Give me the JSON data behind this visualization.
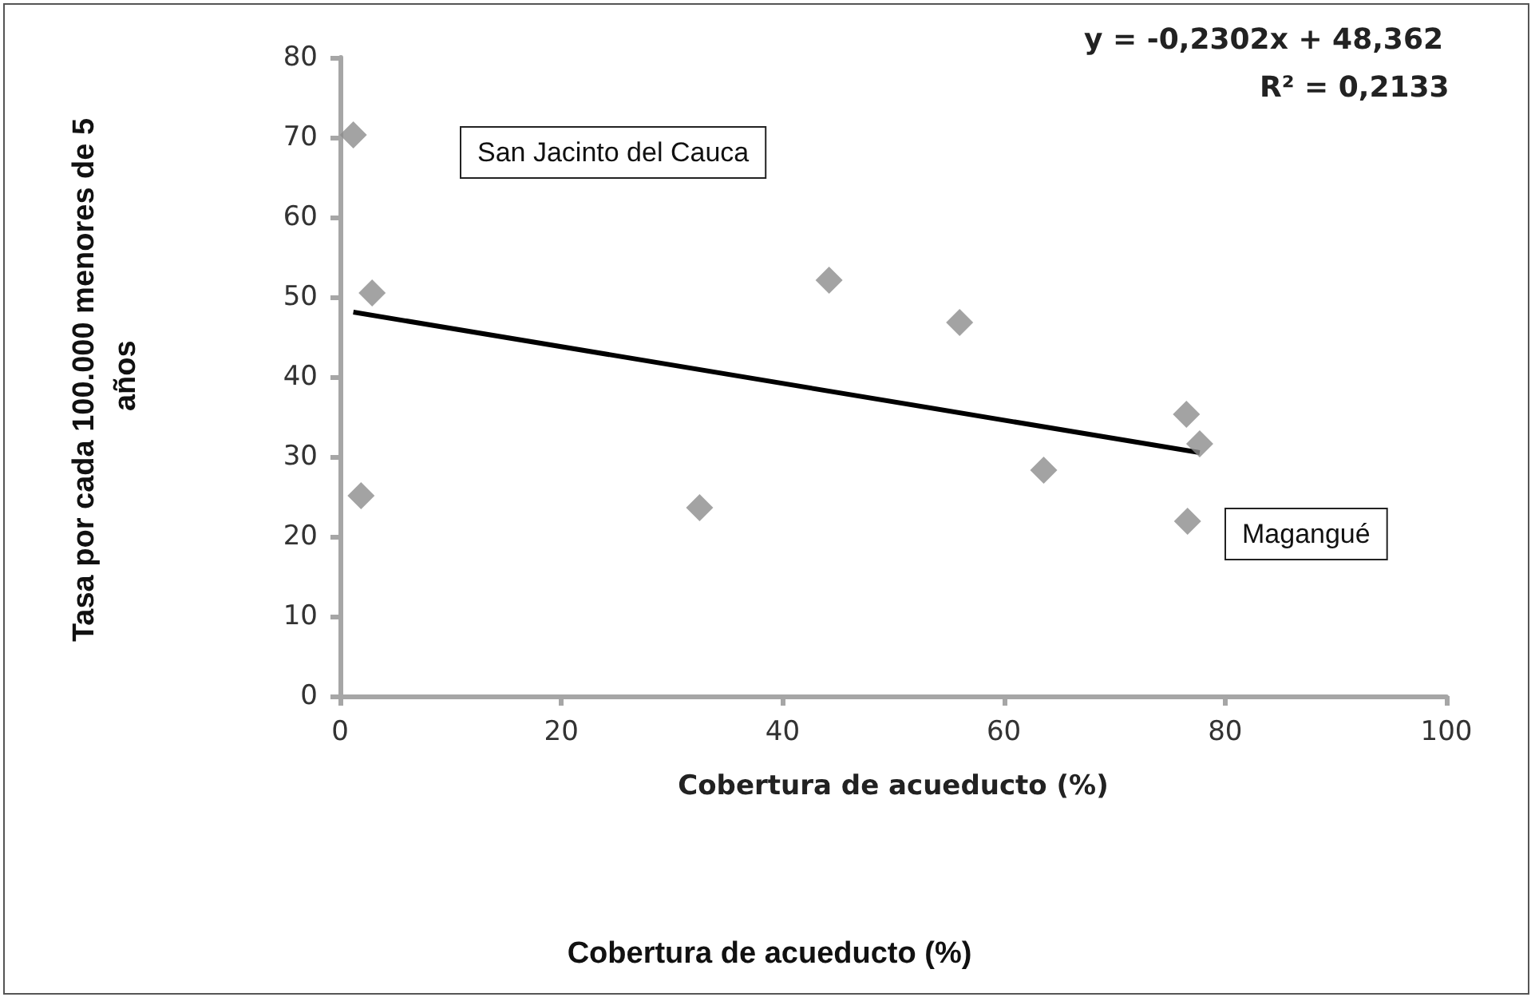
{
  "chart_data": {
    "type": "scatter",
    "xlabel": "Cobertura de acueducto (%)",
    "ylabel": "Tasa por cada 100.000 menores de 5 años",
    "x": [
      1.2,
      2.9,
      1.9,
      32.5,
      44.2,
      56.0,
      63.6,
      76.5,
      77.7,
      76.6
    ],
    "series": [
      {
        "type": "scatter",
        "color": "#8c8c8c",
        "values": [
          70.3,
          50.5,
          25.1,
          23.6,
          52.1,
          46.8,
          28.3,
          35.3,
          31.6,
          21.9
        ]
      },
      {
        "type": "line",
        "color": "#000000",
        "x": [
          1.2,
          77.7
        ],
        "values": [
          48.1,
          30.5
        ],
        "marker": "none"
      }
    ],
    "marker": "diamond",
    "xlim": [
      0,
      100
    ],
    "xticks": [
      0,
      20,
      40,
      60,
      80,
      100
    ],
    "ylim": [
      0,
      80
    ],
    "yticks": [
      0,
      10,
      20,
      30,
      40,
      50,
      60,
      70,
      80
    ],
    "grid": false,
    "annotations": [
      "y = -0,2302x + 48,362",
      "R² = 0,2133",
      "San Jacinto del Cauca",
      "Magangué",
      "Cobertura de acueducto (%)"
    ]
  }
}
